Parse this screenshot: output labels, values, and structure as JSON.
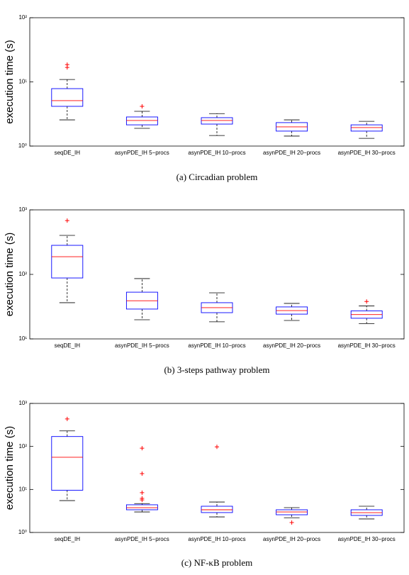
{
  "chart_data": [
    {
      "type": "box",
      "log_scale": true,
      "ylabel": "execution time (s)",
      "caption": "(a) Circadian problem",
      "categories": [
        "seqDE_IH",
        "asynPDE_IH 5−procs",
        "asynPDE_IH 10−procs",
        "asynPDE_IH 20−procs",
        "asynPDE_IH 30−procs"
      ],
      "ylim": [
        1,
        100
      ],
      "yticks": [
        {
          "value": 1,
          "label": "10⁰"
        },
        {
          "value": 10,
          "label": "10¹"
        },
        {
          "value": 100,
          "label": "10²"
        }
      ],
      "box_color": "#0000ff",
      "median_color": "#ff0000",
      "outlier_color": "#ff0000",
      "boxes": [
        {
          "whisker_low": 2.56,
          "q1": 4.16,
          "median": 5.1,
          "q3": 7.85,
          "whisker_high": 10.9,
          "outliers": [
            18.6,
            16.8
          ]
        },
        {
          "whisker_low": 1.89,
          "q1": 2.14,
          "median": 2.5,
          "q3": 2.84,
          "whisker_high": 3.48,
          "outliers": [
            4.16
          ]
        },
        {
          "whisker_low": 1.46,
          "q1": 2.2,
          "median": 2.5,
          "q3": 2.77,
          "whisker_high": 3.2,
          "outliers": []
        },
        {
          "whisker_low": 1.43,
          "q1": 1.71,
          "median": 1.99,
          "q3": 2.32,
          "whisker_high": 2.56,
          "outliers": []
        },
        {
          "whisker_low": 1.32,
          "q1": 1.71,
          "median": 1.94,
          "q3": 2.14,
          "whisker_high": 2.43,
          "outliers": []
        }
      ]
    },
    {
      "type": "box",
      "log_scale": true,
      "ylabel": "execution time (s)",
      "caption": "(b) 3-steps pathway problem",
      "categories": [
        "seqDE_IH",
        "asynPDE_IH 5−procs",
        "asynPDE_IH 10−procs",
        "asynPDE_IH 20−procs",
        "asynPDE_IH 30−procs"
      ],
      "ylim": [
        10,
        1000
      ],
      "yticks": [
        {
          "value": 10,
          "label": "10¹"
        },
        {
          "value": 100,
          "label": "10²"
        },
        {
          "value": 1000,
          "label": "10³"
        }
      ],
      "box_color": "#0000ff",
      "median_color": "#ff0000",
      "outlier_color": "#ff0000",
      "boxes": [
        {
          "whisker_low": 36.4,
          "q1": 88,
          "median": 188,
          "q3": 282,
          "whisker_high": 402,
          "outliers": [
            683
          ]
        },
        {
          "whisker_low": 19.8,
          "q1": 29,
          "median": 39,
          "q3": 53,
          "whisker_high": 86,
          "outliers": []
        },
        {
          "whisker_low": 18.4,
          "q1": 25.5,
          "median": 30.5,
          "q3": 36.4,
          "whisker_high": 51.8,
          "outliers": []
        },
        {
          "whisker_low": 19.3,
          "q1": 24.2,
          "median": 27.5,
          "q3": 31.3,
          "whisker_high": 35.5,
          "outliers": []
        },
        {
          "whisker_low": 17.3,
          "q1": 20.9,
          "median": 23.8,
          "q3": 27.2,
          "whisker_high": 32.5,
          "outliers": [
            38
          ]
        }
      ]
    },
    {
      "type": "box",
      "log_scale": true,
      "ylabel": "execution time (s)",
      "caption": "(c) NF-κB problem",
      "categories": [
        "seqDE_IH",
        "asynPDE_IH 5−procs",
        "asynPDE_IH 10−procs",
        "asynPDE_IH 20−procs",
        "asynPDE_IH 30−procs"
      ],
      "ylim": [
        1,
        1000
      ],
      "yticks": [
        {
          "value": 1,
          "label": "10⁰"
        },
        {
          "value": 10,
          "label": "10¹"
        },
        {
          "value": 100,
          "label": "10²"
        },
        {
          "value": 1000,
          "label": "10³"
        }
      ],
      "box_color": "#0000ff",
      "median_color": "#ff0000",
      "outlier_color": "#ff0000",
      "boxes": [
        {
          "whisker_low": 5.5,
          "q1": 9.6,
          "median": 56,
          "q3": 170,
          "whisker_high": 230,
          "outliers": [
            436
          ]
        },
        {
          "whisker_low": 3.0,
          "q1": 3.37,
          "median": 3.77,
          "q3": 4.4,
          "whisker_high": 4.7,
          "outliers": [
            91,
            23.3,
            8.4,
            6.2,
            5.7
          ]
        },
        {
          "whisker_low": 2.3,
          "q1": 2.9,
          "median": 3.37,
          "q3": 4.07,
          "whisker_high": 5.1,
          "outliers": [
            98
          ]
        },
        {
          "whisker_low": 2.2,
          "q1": 2.58,
          "median": 3.0,
          "q3": 3.37,
          "whisker_high": 3.77,
          "outliers": [
            1.7
          ]
        },
        {
          "whisker_low": 2.06,
          "q1": 2.49,
          "median": 2.89,
          "q3": 3.37,
          "whisker_high": 4.07,
          "outliers": []
        }
      ]
    }
  ]
}
